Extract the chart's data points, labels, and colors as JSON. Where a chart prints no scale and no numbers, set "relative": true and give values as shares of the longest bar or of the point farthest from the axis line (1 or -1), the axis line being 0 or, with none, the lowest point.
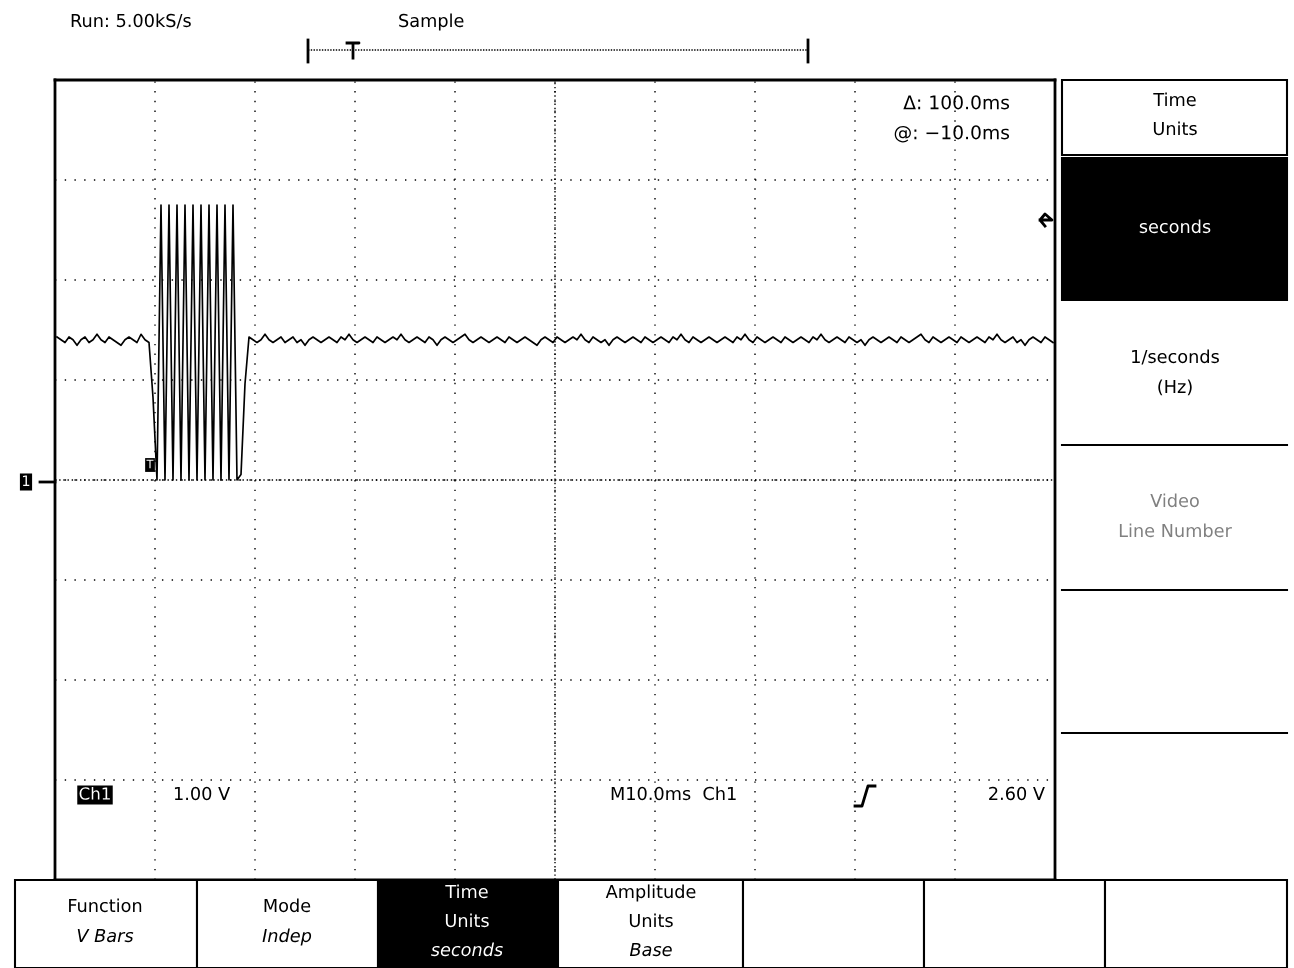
{
  "chart_data": {
    "type": "line",
    "relative": true,
    "grid": true,
    "categories": [
      null,
      null,
      null,
      null,
      null,
      null,
      null,
      null,
      null,
      null,
      null,
      null,
      null,
      null,
      null,
      null,
      null,
      null,
      null,
      null,
      null,
      null,
      null,
      null,
      null,
      null,
      null,
      null,
      null,
      null,
      null,
      null,
      null,
      null,
      null,
      null,
      null,
      null,
      null,
      null,
      null,
      null,
      null,
      null,
      null,
      null,
      null,
      null,
      null,
      null,
      null,
      null,
      null,
      null,
      null,
      null,
      null,
      null,
      null,
      null,
      null,
      null,
      null,
      null,
      null,
      null,
      null,
      null,
      null,
      null,
      null,
      null,
      null,
      null,
      null,
      null,
      null,
      null,
      null,
      null,
      null,
      null,
      null,
      null,
      null,
      null,
      null,
      null,
      null,
      null,
      null,
      null,
      null,
      null,
      null,
      null,
      null,
      null,
      null,
      null,
      null,
      null,
      null,
      null,
      null,
      null,
      null,
      null,
      null,
      null,
      null,
      null,
      null,
      null,
      null,
      null,
      null,
      null,
      null,
      null,
      null,
      null,
      null,
      null,
      null,
      null,
      null,
      null,
      null,
      null,
      null,
      null,
      null,
      null,
      null,
      null,
      null,
      null,
      null,
      null,
      null,
      null,
      null,
      null,
      null,
      null,
      null,
      null,
      null,
      null,
      null,
      null,
      null,
      null,
      null,
      null,
      null,
      null,
      null,
      null,
      null,
      null,
      null,
      null,
      null,
      null,
      null,
      null,
      null,
      null,
      null,
      null,
      null,
      null,
      null,
      null,
      null,
      null,
      null,
      null,
      null,
      null,
      null,
      null,
      null,
      null,
      null,
      null,
      null,
      null,
      null,
      null,
      null,
      null,
      null,
      null,
      null,
      null,
      null,
      null,
      null,
      null,
      null,
      null,
      null,
      null,
      null,
      null,
      null,
      null,
      null,
      null,
      null,
      null,
      null,
      null,
      null,
      null,
      null,
      null,
      null,
      null,
      null,
      null,
      null,
      null,
      null,
      null,
      null,
      null,
      null,
      null,
      null,
      null,
      null,
      null,
      null,
      null,
      null,
      null,
      null,
      null,
      null,
      null,
      null,
      null,
      null,
      null,
      null,
      null
    ],
    "series": [
      {
        "color": "#000000",
        "values": [
          0.52,
          0.51,
          0.5,
          0.52,
          0.51,
          0.49,
          0.51,
          0.52,
          0.5,
          0.51,
          0.53,
          0.51,
          0.5,
          0.52,
          0.51,
          0.5,
          0.49,
          0.51,
          0.52,
          0.51,
          0.5,
          0.53,
          0.51,
          0.5,
          0.3,
          0.0,
          1.0,
          0.0,
          1.0,
          0.0,
          1.0,
          0.0,
          1.0,
          0.0,
          1.0,
          0.0,
          1.0,
          0.0,
          1.0,
          0.0,
          1.0,
          0.0,
          1.0,
          0.0,
          1.0,
          0.0,
          0.02,
          0.35,
          0.52,
          0.51,
          0.5,
          0.51,
          0.53,
          0.51,
          0.5,
          0.51,
          0.52,
          0.5,
          0.51,
          0.52,
          0.5,
          0.51,
          0.49,
          0.51,
          0.52,
          0.51,
          0.5,
          0.51,
          0.52,
          0.51,
          0.5,
          0.52,
          0.51,
          0.53,
          0.51,
          0.5,
          0.51,
          0.52,
          0.51,
          0.5,
          0.52,
          0.51,
          0.5,
          0.51,
          0.52,
          0.51,
          0.53,
          0.51,
          0.5,
          0.51,
          0.52,
          0.51,
          0.5,
          0.52,
          0.51,
          0.49,
          0.51,
          0.52,
          0.51,
          0.5,
          0.51,
          0.52,
          0.53,
          0.51,
          0.5,
          0.51,
          0.52,
          0.51,
          0.5,
          0.51,
          0.52,
          0.51,
          0.5,
          0.52,
          0.51,
          0.5,
          0.51,
          0.52,
          0.51,
          0.5,
          0.49,
          0.51,
          0.52,
          0.51,
          0.5,
          0.52,
          0.51,
          0.5,
          0.51,
          0.52,
          0.51,
          0.53,
          0.51,
          0.5,
          0.52,
          0.51,
          0.5,
          0.51,
          0.49,
          0.51,
          0.52,
          0.51,
          0.5,
          0.51,
          0.52,
          0.51,
          0.5,
          0.52,
          0.51,
          0.5,
          0.51,
          0.52,
          0.51,
          0.5,
          0.52,
          0.51,
          0.53,
          0.51,
          0.5,
          0.52,
          0.51,
          0.5,
          0.51,
          0.52,
          0.51,
          0.5,
          0.51,
          0.52,
          0.51,
          0.5,
          0.52,
          0.51,
          0.53,
          0.51,
          0.5,
          0.52,
          0.51,
          0.5,
          0.51,
          0.52,
          0.51,
          0.5,
          0.52,
          0.51,
          0.5,
          0.51,
          0.52,
          0.51,
          0.5,
          0.52,
          0.51,
          0.53,
          0.51,
          0.5,
          0.51,
          0.52,
          0.51,
          0.5,
          0.52,
          0.51,
          0.5,
          0.51,
          0.49,
          0.51,
          0.52,
          0.51,
          0.5,
          0.51,
          0.52,
          0.51,
          0.5,
          0.52,
          0.51,
          0.5,
          0.51,
          0.52,
          0.53,
          0.51,
          0.5,
          0.52,
          0.51,
          0.5,
          0.51,
          0.52,
          0.51,
          0.5,
          0.52,
          0.51,
          0.5,
          0.51,
          0.52,
          0.51,
          0.5,
          0.52,
          0.51,
          0.53,
          0.51,
          0.5,
          0.51,
          0.52,
          0.5,
          0.51,
          0.49,
          0.51,
          0.52,
          0.51,
          0.5,
          0.52,
          0.51,
          0.5
        ]
      }
    ],
    "annotations": [
      "Run: 5.00kS/s",
      "Sample",
      "Δ: 100.0ms",
      "@: −10.0ms",
      "Ch1",
      "1.00 V",
      "M10.0ms  Ch1",
      "2.60 V",
      "Time",
      "Units",
      "seconds",
      "1/seconds",
      "(Hz)",
      "Video",
      "Line Number",
      "Function",
      "V Bars",
      "Mode",
      "Indep",
      "Time",
      "Units",
      "seconds",
      "Amplitude",
      "Units",
      "Base",
      "1",
      "T"
    ]
  }
}
